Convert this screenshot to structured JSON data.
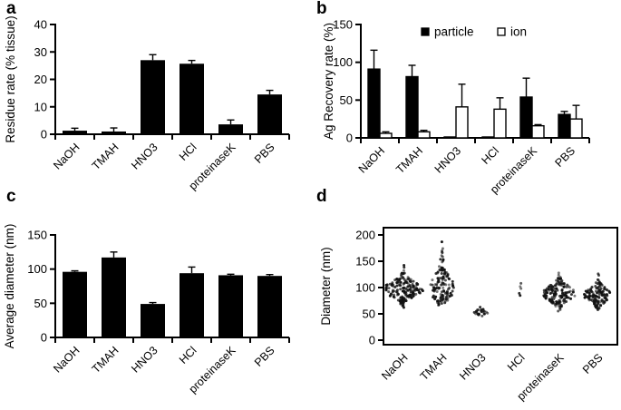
{
  "figure": {
    "background": "#ffffff",
    "text_color": "#000000",
    "bar_color": "#000000",
    "open_bar_fill": "#ffffff",
    "axis_color": "#000000"
  },
  "chart_data": [
    {
      "panel": "a",
      "type": "bar",
      "ylabel": "Residue rate (% tissue)",
      "categories": [
        "NaOH",
        "TMAH",
        "HNO3",
        "HCl",
        "proteinaseK",
        "PBS"
      ],
      "values": [
        1.3,
        1.0,
        27.0,
        25.7,
        3.6,
        14.5
      ],
      "errors": [
        0.9,
        1.3,
        2.0,
        1.2,
        1.6,
        1.5
      ],
      "ylim": [
        0,
        40
      ],
      "yticks": [
        0,
        10,
        20,
        30,
        40
      ],
      "grid": false
    },
    {
      "panel": "b",
      "type": "bar",
      "ylabel": "Ag Recovery rate (%)",
      "categories": [
        "NaOH",
        "TMAH",
        "HNO3",
        "HCl",
        "proteinaseK",
        "PBS"
      ],
      "series": [
        {
          "name": "particle",
          "marker": "filled-square",
          "values": [
            91,
            81,
            1,
            1,
            54,
            31
          ],
          "errors": [
            25,
            15,
            0,
            0,
            25,
            4
          ]
        },
        {
          "name": "ion",
          "marker": "open-square",
          "values": [
            6,
            8,
            41,
            38,
            16,
            25
          ],
          "errors": [
            2,
            2,
            30,
            15,
            1.5,
            18
          ]
        }
      ],
      "legend": [
        {
          "label": "particle",
          "marker": "filled-square"
        },
        {
          "label": "ion",
          "marker": "open-square"
        }
      ],
      "legend_position": "top-inside",
      "ylim": [
        0,
        150
      ],
      "yticks": [
        0,
        50,
        100,
        150
      ],
      "grid": false
    },
    {
      "panel": "c",
      "type": "bar",
      "ylabel": "Average diameter (nm)",
      "categories": [
        "NaOH",
        "TMAH",
        "HNO3",
        "HCl",
        "proteinaseK",
        "PBS"
      ],
      "values": [
        96,
        117,
        49,
        94,
        91,
        90
      ],
      "errors": [
        1.5,
        8,
        2,
        9,
        1.5,
        2
      ],
      "ylim": [
        0,
        150
      ],
      "yticks": [
        0,
        50,
        100,
        150
      ],
      "grid": false
    },
    {
      "panel": "d",
      "type": "beeswarm",
      "ylabel": "Diameter (nm)",
      "categories": [
        "NaOH",
        "TMAH",
        "HNO3",
        "HCl",
        "proteinaseK",
        "PBS"
      ],
      "clusters": [
        {
          "category": "NaOH",
          "center": 97,
          "sd": 15,
          "range": [
            58,
            172
          ],
          "n": 170,
          "max_width": 22
        },
        {
          "category": "TMAH",
          "center": 100,
          "sd": 27,
          "range": [
            66,
            197
          ],
          "n": 130,
          "max_width": 12
        },
        {
          "category": "HNO3",
          "center": 53,
          "sd": 4,
          "range": [
            44,
            63
          ],
          "n": 22,
          "max_width": 7
        },
        {
          "category": "HCl",
          "center": 97,
          "sd": 8,
          "range": [
            85,
            108
          ],
          "n": 5,
          "max_width": 2,
          "points": [
            85,
            89,
            98,
            102,
            108
          ]
        },
        {
          "category": "proteinaseK",
          "center": 89,
          "sd": 15,
          "range": [
            52,
            180
          ],
          "n": 150,
          "max_width": 18
        },
        {
          "category": "PBS",
          "center": 86,
          "sd": 13,
          "range": [
            45,
            170
          ],
          "n": 130,
          "max_width": 15
        }
      ],
      "ylim": [
        0,
        200
      ],
      "yticks": [
        0,
        50,
        100,
        150,
        200
      ],
      "boxed": true,
      "grid": false
    }
  ]
}
